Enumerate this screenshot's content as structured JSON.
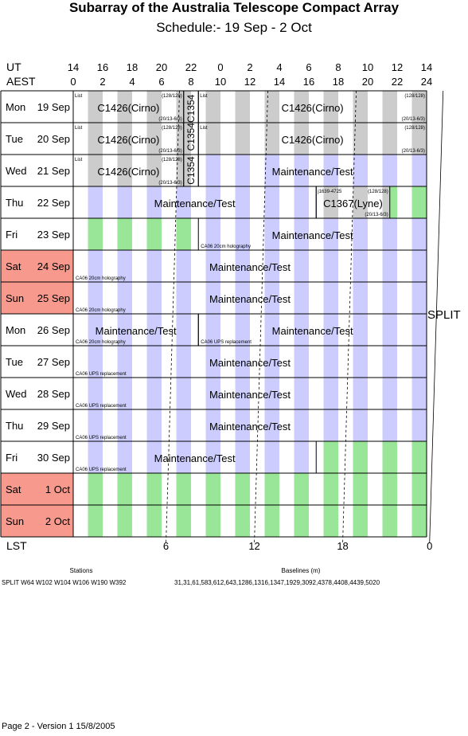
{
  "title": "Subarray of the Australia Telescope Compact Array",
  "subtitle": "Schedule:- 19 Sep - 2  Oct",
  "ut_label": "UT",
  "aest_label": "AEST",
  "lst_label": "LST",
  "ut_ticks": [
    "14",
    "16",
    "18",
    "20",
    "22",
    "0",
    "2",
    "4",
    "6",
    "8",
    "10",
    "12",
    "14"
  ],
  "aest_ticks": [
    "0",
    "2",
    "4",
    "6",
    "8",
    "10",
    "12",
    "14",
    "16",
    "18",
    "20",
    "22",
    "24"
  ],
  "lst_ticks": [
    {
      "label": "6",
      "hour": 6.3
    },
    {
      "label": "12",
      "hour": 12.3
    },
    {
      "label": "18",
      "hour": 18.3
    },
    {
      "label": "0",
      "hour": 24.2
    }
  ],
  "days": [
    {
      "day": "Mon",
      "date": "19 Sep",
      "weekend": false
    },
    {
      "day": "Tue",
      "date": "20 Sep",
      "weekend": false
    },
    {
      "day": "Wed",
      "date": "21 Sep",
      "weekend": false
    },
    {
      "day": "Thu",
      "date": "22 Sep",
      "weekend": false
    },
    {
      "day": "Fri",
      "date": "23 Sep",
      "weekend": false
    },
    {
      "day": "Sat",
      "date": "24 Sep",
      "weekend": true
    },
    {
      "day": "Sun",
      "date": "25 Sep",
      "weekend": true
    },
    {
      "day": "Mon",
      "date": "26 Sep",
      "weekend": false
    },
    {
      "day": "Tue",
      "date": "27 Sep",
      "weekend": false
    },
    {
      "day": "Wed",
      "date": "28 Sep",
      "weekend": false
    },
    {
      "day": "Thu",
      "date": "29 Sep",
      "weekend": false
    },
    {
      "day": "Fri",
      "date": "30 Sep",
      "weekend": false
    },
    {
      "day": "Sat",
      "date": "1  Oct",
      "weekend": true
    },
    {
      "day": "Sun",
      "date": "2  Oct",
      "weekend": true
    }
  ],
  "stripes": [
    {
      "row": 0,
      "start": 0,
      "end": 24,
      "color": "gray"
    },
    {
      "row": 1,
      "start": 0,
      "end": 24,
      "color": "gray"
    },
    {
      "row": 2,
      "start": 0,
      "end": 8,
      "color": "gray"
    },
    {
      "row": 2,
      "start": 8,
      "end": 24,
      "color": "blue"
    },
    {
      "row": 3,
      "start": 0,
      "end": 16.5,
      "color": "blue"
    },
    {
      "row": 3,
      "start": 16.5,
      "end": 21.5,
      "color": "gray"
    },
    {
      "row": 3,
      "start": 21.5,
      "end": 24,
      "color": "green"
    },
    {
      "row": 4,
      "start": 0,
      "end": 8.5,
      "color": "green"
    },
    {
      "row": 4,
      "start": 8.5,
      "end": 24,
      "color": "blue"
    },
    {
      "row": 5,
      "start": 0,
      "end": 24,
      "color": "blue"
    },
    {
      "row": 6,
      "start": 0,
      "end": 24,
      "color": "blue"
    },
    {
      "row": 7,
      "start": 0,
      "end": 24,
      "color": "blue"
    },
    {
      "row": 8,
      "start": 0,
      "end": 24,
      "color": "blue"
    },
    {
      "row": 9,
      "start": 0,
      "end": 24,
      "color": "blue"
    },
    {
      "row": 10,
      "start": 0,
      "end": 24,
      "color": "blue"
    },
    {
      "row": 11,
      "start": 0,
      "end": 16.5,
      "color": "blue"
    },
    {
      "row": 11,
      "start": 16.5,
      "end": 24,
      "color": "green"
    },
    {
      "row": 12,
      "start": 0,
      "end": 24,
      "color": "green"
    },
    {
      "row": 13,
      "start": 0,
      "end": 24,
      "color": "green"
    }
  ],
  "blocks": [
    {
      "row": 0,
      "start": 0,
      "end": 7.5,
      "label": "C1426(Cirno)",
      "list": "List",
      "tag": "(128/128)",
      "sub": "(20/13-6/3)"
    },
    {
      "row": 0,
      "start": 8.5,
      "end": 24,
      "label": "C1426(Cirno)",
      "list": "List",
      "tag": "(128/128)",
      "sub": "(20/13-6/3)"
    },
    {
      "row": 1,
      "start": 0,
      "end": 7.5,
      "label": "C1426(Cirno)",
      "list": "List",
      "tag": "(128/128)",
      "sub": "(20/13-6/3)"
    },
    {
      "row": 1,
      "start": 8.5,
      "end": 24,
      "label": "C1426(Cirno)",
      "list": "List",
      "tag": "(128/128)",
      "sub": "(20/13-6/3)"
    },
    {
      "row": 2,
      "start": 0,
      "end": 7.5,
      "label": "C1426(Cirno)",
      "list": "List",
      "tag": "(128/128)",
      "sub": "(20/13-6/3)"
    },
    {
      "row": 2,
      "start": 8.5,
      "end": 24,
      "label": "Maintenance/Test"
    },
    {
      "row": 3,
      "start": 0,
      "end": 16.5,
      "label": "Maintenance/Test"
    },
    {
      "row": 3,
      "start": 16.5,
      "end": 21.5,
      "label": "C1367(Lyne)",
      "list": "j1639-4725",
      "tag": "(128/128)",
      "sub": "(20/13-6/3)"
    },
    {
      "row": 4,
      "start": 8.5,
      "end": 24,
      "label": "Maintenance/Test",
      "note": "CA06 20cm holography"
    },
    {
      "row": 5,
      "start": 0,
      "end": 24,
      "label": "Maintenance/Test",
      "note": "CA06 20cm holography"
    },
    {
      "row": 6,
      "start": 0,
      "end": 24,
      "label": "Maintenance/Test",
      "note": "CA06 20cm holography"
    },
    {
      "row": 7,
      "start": 0,
      "end": 8.5,
      "label": "Maintenance/Test",
      "note": "CA06 20cm holography"
    },
    {
      "row": 7,
      "start": 8.5,
      "end": 24,
      "label": "Maintenance/Test",
      "note": "CA06 UPS replacement"
    },
    {
      "row": 8,
      "start": 0,
      "end": 24,
      "label": "Maintenance/Test",
      "note": "CA06 UPS replacement"
    },
    {
      "row": 9,
      "start": 0,
      "end": 24,
      "label": "Maintenance/Test",
      "note": "CA06 UPS replacement"
    },
    {
      "row": 10,
      "start": 0,
      "end": 24,
      "label": "Maintenance/Test",
      "note": "CA06 UPS replacement"
    },
    {
      "row": 11,
      "start": 0,
      "end": 16.5,
      "label": "Maintenance/Test",
      "note": "CA06 UPS replacement"
    }
  ],
  "vertical_projects": [
    {
      "start": 7.5,
      "end": 8.5,
      "label": "C1354C1354",
      "rows": [
        0,
        1
      ]
    },
    {
      "start": 7.5,
      "end": 8.5,
      "label": "C1354",
      "rows": [
        2
      ]
    }
  ],
  "split_label": "SPLIT",
  "stations_heading": "Stations",
  "stations_value": "SPLIT W64 W102 W104 W106 W190 W392",
  "baselines_heading": "Baselines (m)",
  "baselines_value": "31,31,61,583,612,643,1286,1316,1347,1929,3092,4378,4408,4439,5020",
  "footer": "Page 2 - Version 1  15/8/2005",
  "colors": {
    "gray": "#cccccc",
    "blue": "#ccccff",
    "green": "#99e699",
    "weekend": "#f7998c"
  }
}
